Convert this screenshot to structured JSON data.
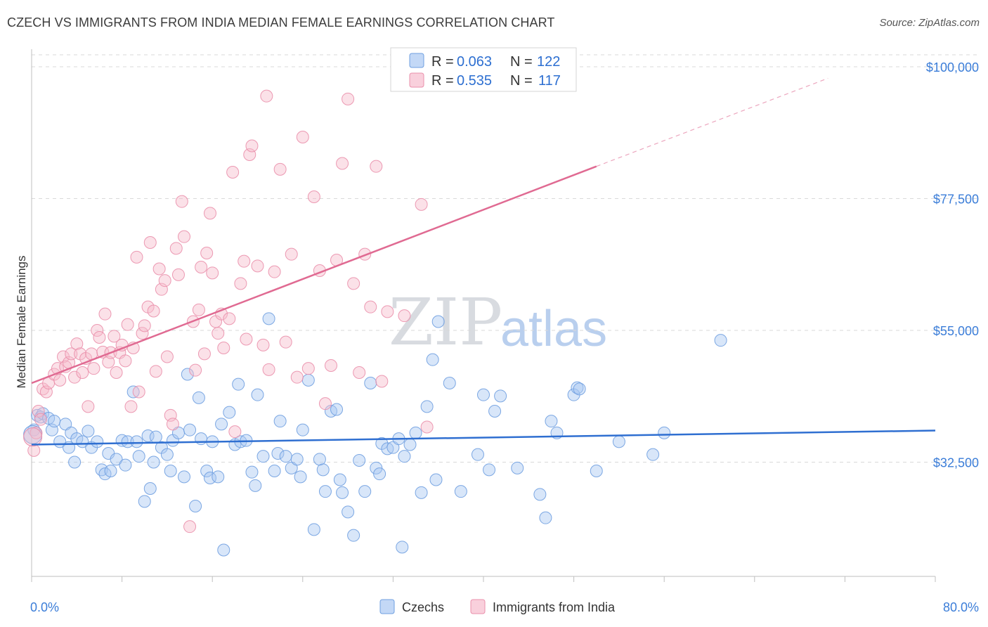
{
  "title": "CZECH VS IMMIGRANTS FROM INDIA MEDIAN FEMALE EARNINGS CORRELATION CHART",
  "source": "Source: ZipAtlas.com",
  "watermark": {
    "zip": "ZIP",
    "atlas": "atlas"
  },
  "legend": {
    "rows": [
      {
        "r_label": "R =",
        "r_value": "0.063",
        "n_label": "N =",
        "n_value": "122"
      },
      {
        "r_label": "R =",
        "r_value": "0.535",
        "n_label": "N =",
        "n_value": "117"
      }
    ]
  },
  "bottom_legend": [
    "Czechs",
    "Immigrants from India"
  ],
  "colors": {
    "czech_fill": "#a9c8f2",
    "czech_stroke": "#6f9fe0",
    "czech_line": "#2f6fd1",
    "india_fill": "#f6bccd",
    "india_stroke": "#ea8fab",
    "india_line": "#e06a92",
    "tick_label": "#3b7dd8",
    "grid": "#d9d9d9"
  },
  "chart_data": {
    "type": "scatter",
    "xlabel": "",
    "ylabel": "Median Female Earnings",
    "xlim": [
      0,
      80
    ],
    "ylim": [
      13000,
      103000
    ],
    "x_tick_labels": [
      "0.0%",
      "80.0%"
    ],
    "y_ticks": [
      32500,
      55000,
      77500,
      100000
    ],
    "y_tick_labels": [
      "$32,500",
      "$55,000",
      "$77,500",
      "$100,000"
    ],
    "grid": true,
    "series": [
      {
        "name": "Czechs",
        "trend": {
          "x": [
            0,
            80
          ],
          "y": [
            35500,
            37900
          ],
          "dashed_extension": false
        },
        "points": [
          [
            0.2,
            38000
          ],
          [
            0.5,
            40500
          ],
          [
            0.8,
            40200
          ],
          [
            1.0,
            40800
          ],
          [
            1.5,
            40000
          ],
          [
            1.8,
            38000
          ],
          [
            2.0,
            39500
          ],
          [
            2.5,
            36000
          ],
          [
            3.0,
            39000
          ],
          [
            3.3,
            35000
          ],
          [
            3.5,
            37500
          ],
          [
            3.8,
            32500
          ],
          [
            4.0,
            36500
          ],
          [
            4.5,
            36000
          ],
          [
            5.0,
            37800
          ],
          [
            5.3,
            35000
          ],
          [
            5.8,
            36000
          ],
          [
            6.2,
            31200
          ],
          [
            6.5,
            30500
          ],
          [
            6.8,
            34000
          ],
          [
            7.0,
            31000
          ],
          [
            7.5,
            33000
          ],
          [
            8.0,
            36200
          ],
          [
            8.3,
            32000
          ],
          [
            8.5,
            36000
          ],
          [
            9.0,
            44500
          ],
          [
            9.3,
            36000
          ],
          [
            9.5,
            33500
          ],
          [
            10.0,
            25800
          ],
          [
            10.3,
            37000
          ],
          [
            10.5,
            28000
          ],
          [
            10.8,
            32500
          ],
          [
            11.0,
            36800
          ],
          [
            11.5,
            35000
          ],
          [
            12.0,
            33800
          ],
          [
            12.3,
            31000
          ],
          [
            12.5,
            36200
          ],
          [
            13.0,
            37500
          ],
          [
            13.5,
            30000
          ],
          [
            13.8,
            47500
          ],
          [
            14.0,
            38000
          ],
          [
            14.5,
            25000
          ],
          [
            14.8,
            43500
          ],
          [
            15.0,
            36500
          ],
          [
            15.5,
            31000
          ],
          [
            15.8,
            29800
          ],
          [
            16.0,
            36000
          ],
          [
            16.5,
            30000
          ],
          [
            16.8,
            39000
          ],
          [
            17.0,
            17500
          ],
          [
            17.5,
            41000
          ],
          [
            18.0,
            35500
          ],
          [
            18.3,
            45800
          ],
          [
            18.5,
            36000
          ],
          [
            19.0,
            36200
          ],
          [
            19.5,
            30800
          ],
          [
            19.8,
            28500
          ],
          [
            20.0,
            44000
          ],
          [
            20.5,
            33500
          ],
          [
            21.0,
            57000
          ],
          [
            21.5,
            31000
          ],
          [
            21.8,
            34000
          ],
          [
            22.0,
            39500
          ],
          [
            22.5,
            33500
          ],
          [
            23.0,
            31500
          ],
          [
            23.5,
            33000
          ],
          [
            23.8,
            30000
          ],
          [
            24.0,
            38000
          ],
          [
            24.5,
            46500
          ],
          [
            25.0,
            21000
          ],
          [
            25.5,
            33000
          ],
          [
            25.8,
            31200
          ],
          [
            26.0,
            27500
          ],
          [
            26.5,
            41200
          ],
          [
            27.0,
            41500
          ],
          [
            27.3,
            29500
          ],
          [
            27.5,
            27300
          ],
          [
            28.0,
            24000
          ],
          [
            28.5,
            20000
          ],
          [
            29.0,
            32800
          ],
          [
            29.5,
            27500
          ],
          [
            30.0,
            46000
          ],
          [
            30.5,
            31500
          ],
          [
            30.8,
            30500
          ],
          [
            31.0,
            35700
          ],
          [
            31.5,
            34800
          ],
          [
            32.0,
            35000
          ],
          [
            32.5,
            36500
          ],
          [
            32.8,
            18000
          ],
          [
            33.0,
            33500
          ],
          [
            33.5,
            35500
          ],
          [
            34.0,
            37500
          ],
          [
            34.5,
            27300
          ],
          [
            35.0,
            42000
          ],
          [
            35.5,
            50000
          ],
          [
            35.8,
            29500
          ],
          [
            36.0,
            56500
          ],
          [
            37.0,
            46000
          ],
          [
            38.0,
            27500
          ],
          [
            39.5,
            33800
          ],
          [
            40.0,
            44000
          ],
          [
            40.5,
            31200
          ],
          [
            41.0,
            41200
          ],
          [
            41.5,
            43800
          ],
          [
            43.0,
            31500
          ],
          [
            45.0,
            27000
          ],
          [
            45.5,
            23000
          ],
          [
            46.0,
            39500
          ],
          [
            46.5,
            37500
          ],
          [
            48.0,
            44000
          ],
          [
            48.3,
            45200
          ],
          [
            48.5,
            45000
          ],
          [
            50.0,
            31000
          ],
          [
            52.0,
            36000
          ],
          [
            55.0,
            33800
          ],
          [
            56.0,
            37500
          ],
          [
            61.0,
            53300
          ]
        ]
      },
      {
        "name": "Immigrants from India",
        "trend": {
          "x": [
            0,
            50,
            80
          ],
          "y": [
            46000,
            83000,
            105000
          ],
          "dashed_extension": true
        },
        "points": [
          [
            0.2,
            34500
          ],
          [
            0.4,
            37500
          ],
          [
            0.6,
            41200
          ],
          [
            0.8,
            39800
          ],
          [
            1.0,
            45000
          ],
          [
            1.3,
            44500
          ],
          [
            1.5,
            46000
          ],
          [
            2.0,
            47500
          ],
          [
            2.3,
            48500
          ],
          [
            2.5,
            46500
          ],
          [
            2.8,
            50500
          ],
          [
            3.0,
            48800
          ],
          [
            3.3,
            49500
          ],
          [
            3.5,
            51000
          ],
          [
            3.8,
            47000
          ],
          [
            4.0,
            52700
          ],
          [
            4.3,
            51000
          ],
          [
            4.5,
            47800
          ],
          [
            4.8,
            50200
          ],
          [
            5.0,
            42000
          ],
          [
            5.3,
            51000
          ],
          [
            5.5,
            48500
          ],
          [
            5.8,
            55000
          ],
          [
            6.0,
            53800
          ],
          [
            6.3,
            51300
          ],
          [
            6.5,
            57800
          ],
          [
            6.8,
            49600
          ],
          [
            7.0,
            51200
          ],
          [
            7.3,
            54000
          ],
          [
            7.5,
            47800
          ],
          [
            7.8,
            51200
          ],
          [
            8.0,
            52500
          ],
          [
            8.3,
            49800
          ],
          [
            8.5,
            56000
          ],
          [
            8.8,
            42000
          ],
          [
            9.0,
            52000
          ],
          [
            9.3,
            67500
          ],
          [
            9.5,
            44500
          ],
          [
            9.8,
            54500
          ],
          [
            10.0,
            55800
          ],
          [
            10.3,
            59000
          ],
          [
            10.5,
            70000
          ],
          [
            10.8,
            58300
          ],
          [
            11.0,
            48000
          ],
          [
            11.3,
            65500
          ],
          [
            11.5,
            62000
          ],
          [
            11.8,
            63500
          ],
          [
            12.0,
            50500
          ],
          [
            12.3,
            40500
          ],
          [
            12.5,
            39000
          ],
          [
            12.8,
            69000
          ],
          [
            13.0,
            64500
          ],
          [
            13.3,
            77000
          ],
          [
            13.5,
            71000
          ],
          [
            14.0,
            21500
          ],
          [
            14.3,
            56500
          ],
          [
            14.5,
            48200
          ],
          [
            14.8,
            58500
          ],
          [
            15.0,
            65800
          ],
          [
            15.3,
            51000
          ],
          [
            15.5,
            68200
          ],
          [
            15.8,
            75000
          ],
          [
            16.0,
            64800
          ],
          [
            16.3,
            56500
          ],
          [
            16.5,
            54500
          ],
          [
            16.8,
            57800
          ],
          [
            17.0,
            52000
          ],
          [
            17.5,
            57000
          ],
          [
            17.8,
            82000
          ],
          [
            18.0,
            37700
          ],
          [
            18.5,
            63000
          ],
          [
            18.8,
            66800
          ],
          [
            19.0,
            53500
          ],
          [
            19.3,
            85000
          ],
          [
            19.5,
            86500
          ],
          [
            20.0,
            66000
          ],
          [
            20.5,
            52500
          ],
          [
            20.8,
            95000
          ],
          [
            21.0,
            48300
          ],
          [
            21.5,
            65000
          ],
          [
            22.0,
            82500
          ],
          [
            22.5,
            53000
          ],
          [
            23.0,
            68000
          ],
          [
            23.5,
            47000
          ],
          [
            24.0,
            88000
          ],
          [
            24.5,
            48500
          ],
          [
            25.0,
            77800
          ],
          [
            25.5,
            65200
          ],
          [
            26.0,
            42500
          ],
          [
            26.5,
            49000
          ],
          [
            27.0,
            67000
          ],
          [
            27.5,
            83500
          ],
          [
            28.0,
            94500
          ],
          [
            28.5,
            63000
          ],
          [
            29.0,
            47800
          ],
          [
            29.5,
            68000
          ],
          [
            30.0,
            59000
          ],
          [
            30.5,
            83000
          ],
          [
            31.0,
            46300
          ],
          [
            31.5,
            58200
          ],
          [
            33.0,
            57500
          ],
          [
            34.5,
            76500
          ],
          [
            35.0,
            38500
          ]
        ]
      }
    ]
  }
}
